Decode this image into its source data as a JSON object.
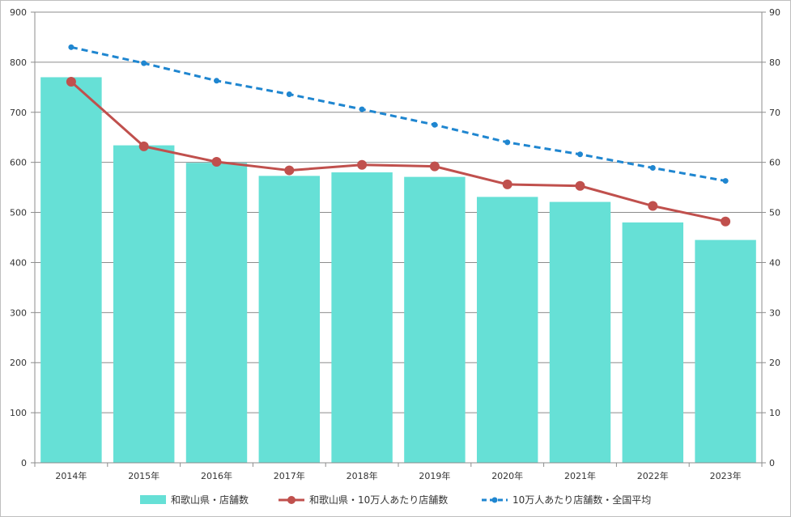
{
  "chart_data": {
    "type": "bar",
    "categories": [
      "2014年",
      "2015年",
      "2016年",
      "2017年",
      "2018年",
      "2019年",
      "2020年",
      "2021年",
      "2022年",
      "2023年"
    ],
    "series": [
      {
        "name": "和歌山県・店舗数",
        "type": "bar",
        "axis": "left",
        "color": "#66e0d6",
        "values": [
          770,
          634,
          599,
          573,
          580,
          571,
          531,
          521,
          480,
          445
        ]
      },
      {
        "name": "和歌山県・10万人あたり店舗数",
        "type": "line",
        "axis": "right",
        "color": "#c0504d",
        "values": [
          76.1,
          63.2,
          60.1,
          58.4,
          59.5,
          59.2,
          55.6,
          55.3,
          51.3,
          48.2
        ]
      },
      {
        "name": "10万人あたり店舗数・全国平均",
        "type": "line",
        "style": "dashed",
        "axis": "right",
        "color": "#1f86d0",
        "values": [
          83.0,
          79.8,
          76.3,
          73.6,
          70.6,
          67.5,
          64.0,
          61.6,
          58.9,
          56.3
        ]
      }
    ],
    "y_left": {
      "min": 0,
      "max": 900,
      "ticks": [
        "0",
        "100",
        "200",
        "300",
        "400",
        "500",
        "600",
        "700",
        "800",
        "900"
      ]
    },
    "y_right": {
      "min": 0,
      "max": 90,
      "ticks": [
        "0",
        "10",
        "20",
        "30",
        "40",
        "50",
        "60",
        "70",
        "80",
        "90"
      ]
    },
    "grid": true,
    "legend": "bottom"
  }
}
